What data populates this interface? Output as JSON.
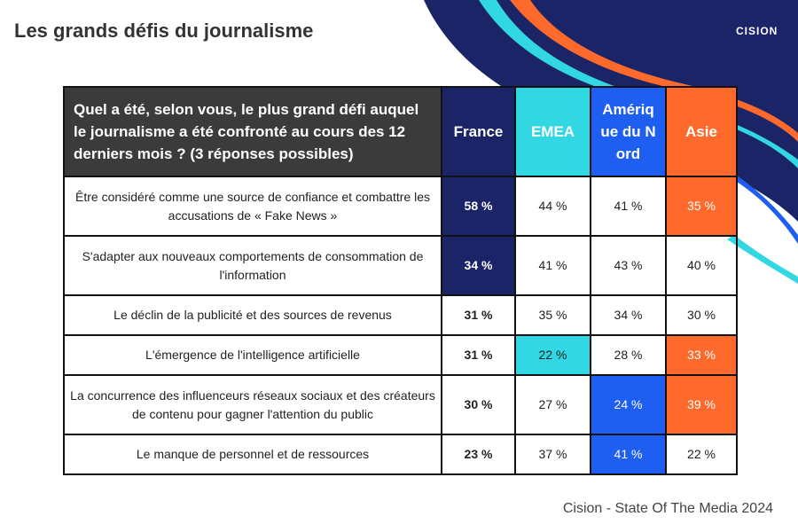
{
  "header": {
    "title": "Les grands défis du journalisme",
    "logo": "CISION"
  },
  "table": {
    "columns": [
      "Quel a été, selon vous, le plus grand défi auquel le journalisme a été confronté au cours des 12 derniers mois ? (3 réponses possibles)",
      "France",
      "EMEA",
      "Amérique du Nord",
      "Asie"
    ],
    "rows": [
      [
        "Être considéré comme une source de confiance et combattre les accusations de « Fake News »",
        "58 %",
        "44 %",
        "41 %",
        "35 %"
      ],
      [
        "S'adapter aux nouveaux comportements de consommation de l'information",
        "34 %",
        "41 %",
        "43 %",
        "40 %"
      ],
      [
        "Le déclin de la publicité et des sources de revenus",
        "31 %",
        "35 %",
        "34 %",
        "30 %"
      ],
      [
        "L'émergence de l'intelligence artificielle",
        "31 %",
        "22 %",
        "28 %",
        "33 %"
      ],
      [
        "La concurrence des influenceurs réseaux sociaux et des créateurs de contenu pour gagner l'attention du public",
        "30 %",
        "27 %",
        "24 %",
        "39 %"
      ],
      [
        "Le manque de personnel et de ressources",
        "23 %",
        "37 %",
        "41 %",
        "22 %"
      ]
    ]
  },
  "footer": {
    "source": "Cision - State Of The Media 2024"
  }
}
